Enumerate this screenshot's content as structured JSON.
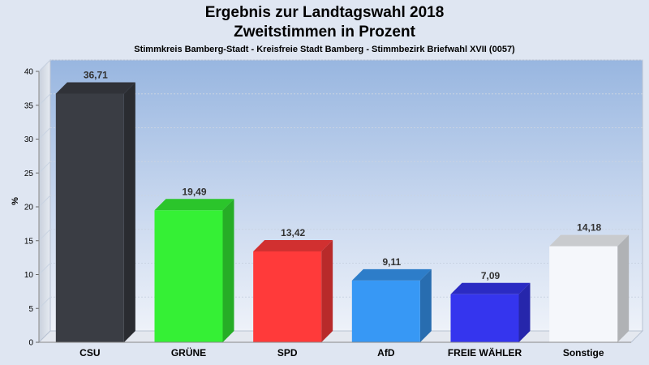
{
  "title": "Ergebnis zur Landtagswahl 2018",
  "subtitle": "Zweitstimmen in Prozent",
  "caption": "Stimmkreis Bamberg-Stadt - Kreisfreie Stadt Bamberg - Stimmbezirk Briefwahl XVII (0057)",
  "chart_data": {
    "type": "bar",
    "title": "Ergebnis zur Landtagswahl 2018",
    "subtitle": "Zweitstimmen in Prozent",
    "xlabel": "",
    "ylabel": "%",
    "ylim": [
      0,
      40
    ],
    "yticks": [
      0,
      5,
      10,
      15,
      20,
      25,
      30,
      35,
      40
    ],
    "categories": [
      "CSU",
      "GRÜNE",
      "SPD",
      "AfD",
      "FREIE WÄHLER",
      "Sonstige"
    ],
    "values": [
      36.71,
      19.49,
      13.42,
      9.11,
      7.09,
      14.18
    ],
    "value_labels": [
      "36,71",
      "19,49",
      "13,42",
      "9,11",
      "7,09",
      "14,18"
    ],
    "colors": [
      "#3a3d44",
      "#35f035",
      "#ff3a3a",
      "#3798f5",
      "#3535ee",
      "#f5f7fb"
    ],
    "grid": true,
    "legend": "none"
  }
}
